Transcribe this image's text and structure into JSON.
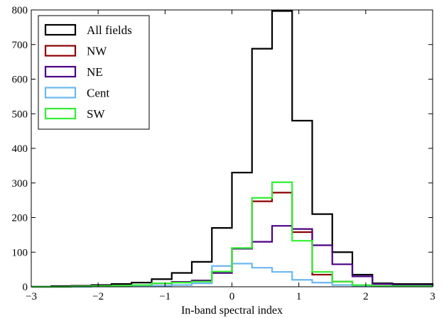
{
  "chart_data": {
    "type": "step-histogram",
    "title": "",
    "xlabel": "In-band spectral index",
    "ylabel": "",
    "xlim": [
      -3,
      3
    ],
    "ylim": [
      0,
      800
    ],
    "xticks": [
      -3,
      -2,
      -1,
      0,
      1,
      2,
      3
    ],
    "xtick_labels": [
      "−3",
      "−2",
      "−1",
      "0",
      "1",
      "2",
      "3"
    ],
    "yticks": [
      0,
      100,
      200,
      300,
      400,
      500,
      600,
      700,
      800
    ],
    "ytick_labels": [
      "0",
      "100",
      "200",
      "300",
      "400",
      "500",
      "600",
      "700",
      "800"
    ],
    "grid": false,
    "legend_position": "top-left",
    "bin_edges": [
      -3.0,
      -2.7,
      -2.4,
      -2.1,
      -1.8,
      -1.5,
      -1.2,
      -0.9,
      -0.6,
      -0.3,
      0.0,
      0.3,
      0.6,
      0.9,
      1.2,
      1.5,
      1.8,
      2.1,
      2.4,
      2.7,
      3.0
    ],
    "series": [
      {
        "name": "All fields",
        "color": "#000000",
        "values": [
          0,
          2,
          3,
          5,
          8,
          12,
          22,
          40,
          72,
          170,
          330,
          688,
          797,
          480,
          210,
          100,
          35,
          10,
          8,
          8
        ]
      },
      {
        "name": "NW",
        "color": "#8b0000",
        "values": [
          0,
          0,
          1,
          2,
          3,
          5,
          10,
          14,
          18,
          40,
          110,
          247,
          272,
          158,
          35,
          15,
          5,
          2,
          2,
          2
        ]
      },
      {
        "name": "NE",
        "color": "#4b0082",
        "values": [
          0,
          0,
          1,
          2,
          3,
          5,
          10,
          14,
          18,
          40,
          110,
          130,
          176,
          167,
          120,
          65,
          30,
          8,
          5,
          5
        ]
      },
      {
        "name": "Cent",
        "color": "#6bb8ef",
        "values": [
          0,
          0,
          0,
          1,
          1,
          2,
          3,
          5,
          10,
          60,
          67,
          55,
          43,
          20,
          12,
          5,
          2,
          1,
          1,
          1
        ]
      },
      {
        "name": "SW",
        "color": "#33ee33",
        "values": [
          0,
          0,
          1,
          2,
          3,
          5,
          10,
          12,
          15,
          44,
          112,
          257,
          302,
          133,
          43,
          15,
          5,
          2,
          2,
          2
        ]
      }
    ]
  }
}
